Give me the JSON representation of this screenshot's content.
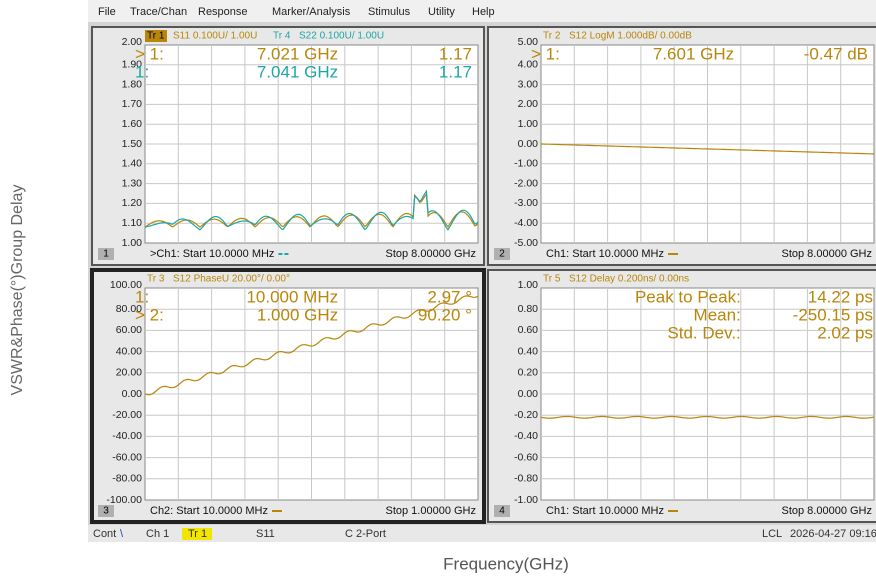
{
  "left_label": "VSWR&Phase(°)Group Delay",
  "bottom_label": "Frequency(GHz)",
  "menu": [
    "File",
    "Trace/Chan",
    "Response",
    "Marker/Analysis",
    "Stimulus",
    "Utility",
    "Help"
  ],
  "panels": [
    {
      "number": "1",
      "header": [
        "Tr 1",
        "S11 0.100U/ 1.00U",
        "Tr 4",
        "S22 0.100U/ 1.00U"
      ],
      "yticks": [
        "2.00",
        "1.90",
        "1.80",
        "1.70",
        "1.60",
        "1.50",
        "1.40",
        "1.30",
        "1.20",
        "1.10",
        "1.00"
      ],
      "markers": [
        [
          "> 1:",
          "7.021 GHz",
          "1.17"
        ],
        [
          "1:",
          "7.041 GHz",
          "1.17"
        ]
      ],
      "footer_start": ">Ch1: Start  10.0000 MHz",
      "footer_stop": "Stop  8.00000 GHz"
    },
    {
      "number": "2",
      "header": [
        "Tr 2",
        "S12 LogM 1.000dB/ 0.00dB"
      ],
      "yticks": [
        "5.00",
        "4.00",
        "3.00",
        "2.00",
        "1.00",
        "0.00",
        "-1.00",
        "-2.00",
        "-3.00",
        "-4.00",
        "-5.00"
      ],
      "markers": [
        [
          "> 1:",
          "7.601 GHz",
          "-0.47 dB"
        ]
      ],
      "footer_start": "Ch1: Start  10.0000 MHz",
      "footer_stop": "Stop  8.00000 GHz"
    },
    {
      "number": "3",
      "header": [
        "Tr 3",
        "S12 PhaseU 20.00°/ 0.00°"
      ],
      "yticks": [
        "100.00",
        "80.00",
        "60.00",
        "40.00",
        "20.00",
        "0.00",
        "-20.00",
        "-40.00",
        "-60.00",
        "-80.00",
        "-100.00"
      ],
      "markers": [
        [
          "1:",
          "10.000 MHz",
          "2.97 °"
        ],
        [
          "> 2:",
          "1.000 GHz",
          "90.20 °"
        ]
      ],
      "footer_start": "Ch2: Start  10.0000 MHz",
      "footer_stop": "Stop  1.00000 GHz"
    },
    {
      "number": "4",
      "header": [
        "Tr 5",
        "S12 Delay 0.200ns/ 0.00ns"
      ],
      "yticks": [
        "1.00",
        "0.80",
        "0.60",
        "0.40",
        "0.20",
        "0.00",
        "-0.20",
        "-0.40",
        "-0.60",
        "-0.80",
        "-1.00"
      ],
      "markers": [
        [
          "Peak to Peak:",
          "14.22 ps"
        ],
        [
          "Mean:",
          "-250.15 ps"
        ],
        [
          "Std. Dev.:",
          "2.02 ps"
        ]
      ],
      "footer_start": "Ch1: Start  10.0000 MHz",
      "footer_stop": "Stop  8.00000 GHz"
    }
  ],
  "status": [
    "Cont",
    "\\",
    "Ch 1",
    "Tr 1",
    "S11",
    "C 2-Port",
    "LCL",
    "2026-04-27 09:16"
  ]
}
